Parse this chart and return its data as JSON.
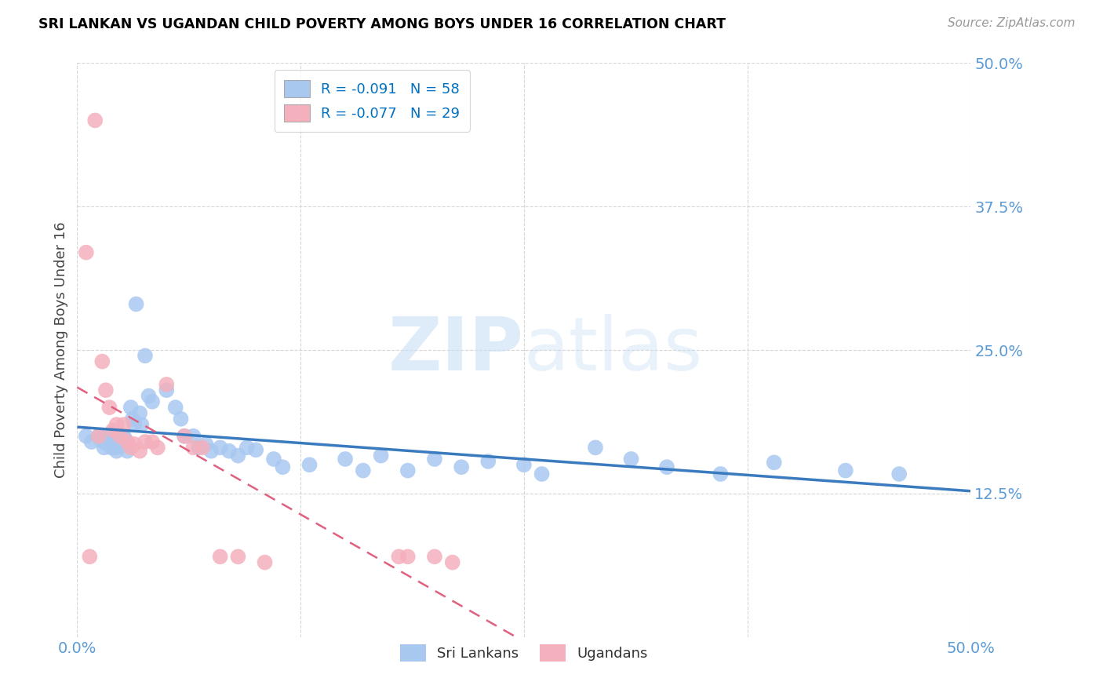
{
  "title": "SRI LANKAN VS UGANDAN CHILD POVERTY AMONG BOYS UNDER 16 CORRELATION CHART",
  "source": "Source: ZipAtlas.com",
  "ylabel": "Child Poverty Among Boys Under 16",
  "watermark_zip": "ZIP",
  "watermark_atlas": "atlas",
  "xlim": [
    0.0,
    0.5
  ],
  "ylim": [
    0.0,
    0.5
  ],
  "xtick_vals": [
    0.0,
    0.125,
    0.25,
    0.375,
    0.5
  ],
  "xticklabels": [
    "0.0%",
    "",
    "",
    "",
    "50.0%"
  ],
  "ytick_vals": [
    0.0,
    0.125,
    0.25,
    0.375,
    0.5
  ],
  "yticklabels": [
    "",
    "12.5%",
    "25.0%",
    "37.5%",
    "50.0%"
  ],
  "sri_color": "#a8c8f0",
  "uga_color": "#f4b0bc",
  "sri_line_color": "#3a7abf",
  "uga_line_color": "#e06080",
  "legend_text_color": "#0070c0",
  "R_sri": -0.091,
  "N_sri": 58,
  "R_uga": -0.077,
  "N_uga": 29,
  "sri_x": [
    0.005,
    0.008,
    0.012,
    0.013,
    0.015,
    0.015,
    0.017,
    0.018,
    0.019,
    0.02,
    0.022,
    0.022,
    0.024,
    0.025,
    0.026,
    0.027,
    0.028,
    0.03,
    0.031,
    0.032,
    0.033,
    0.035,
    0.036,
    0.038,
    0.04,
    0.042,
    0.05,
    0.055,
    0.058,
    0.06,
    0.065,
    0.068,
    0.072,
    0.075,
    0.08,
    0.085,
    0.09,
    0.095,
    0.1,
    0.11,
    0.115,
    0.13,
    0.15,
    0.16,
    0.17,
    0.185,
    0.2,
    0.215,
    0.23,
    0.25,
    0.26,
    0.29,
    0.31,
    0.33,
    0.36,
    0.39,
    0.43,
    0.46
  ],
  "sri_y": [
    0.175,
    0.17,
    0.175,
    0.172,
    0.17,
    0.165,
    0.175,
    0.172,
    0.165,
    0.168,
    0.165,
    0.162,
    0.17,
    0.168,
    0.175,
    0.172,
    0.162,
    0.2,
    0.19,
    0.185,
    0.29,
    0.195,
    0.185,
    0.245,
    0.21,
    0.205,
    0.215,
    0.2,
    0.19,
    0.175,
    0.175,
    0.165,
    0.168,
    0.162,
    0.165,
    0.162,
    0.158,
    0.165,
    0.163,
    0.155,
    0.148,
    0.15,
    0.155,
    0.145,
    0.158,
    0.145,
    0.155,
    0.148,
    0.153,
    0.15,
    0.142,
    0.165,
    0.155,
    0.148,
    0.142,
    0.152,
    0.145,
    0.142
  ],
  "uga_x": [
    0.005,
    0.007,
    0.01,
    0.012,
    0.014,
    0.016,
    0.018,
    0.02,
    0.022,
    0.024,
    0.026,
    0.028,
    0.03,
    0.032,
    0.035,
    0.038,
    0.042,
    0.045,
    0.05,
    0.06,
    0.065,
    0.07,
    0.08,
    0.09,
    0.105,
    0.18,
    0.185,
    0.2,
    0.21
  ],
  "uga_y": [
    0.335,
    0.07,
    0.45,
    0.175,
    0.24,
    0.215,
    0.2,
    0.18,
    0.185,
    0.175,
    0.185,
    0.17,
    0.165,
    0.168,
    0.162,
    0.17,
    0.17,
    0.165,
    0.22,
    0.175,
    0.165,
    0.165,
    0.07,
    0.07,
    0.065,
    0.07,
    0.07,
    0.07,
    0.065
  ]
}
